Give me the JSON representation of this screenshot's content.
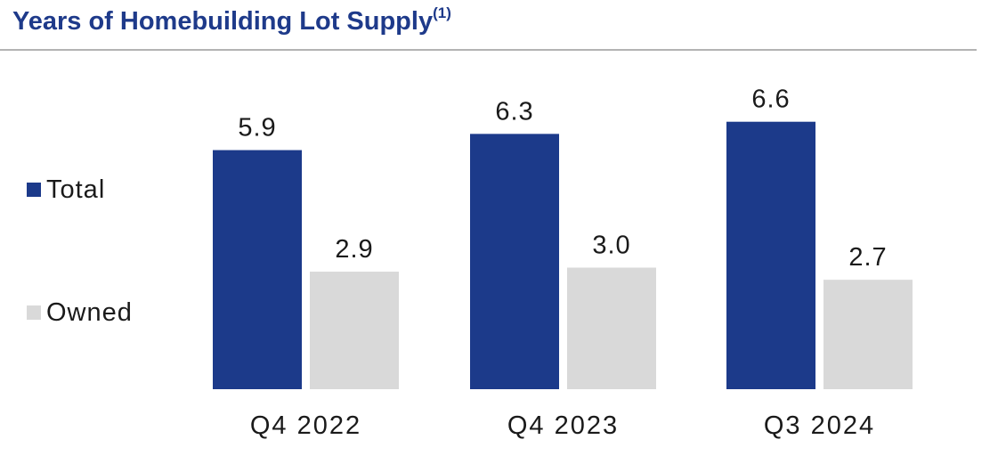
{
  "title": "Years of Homebuilding Lot Supply",
  "title_footnote": "(1)",
  "colors": {
    "title": "#1e3a8a",
    "total": "#1c3a8a",
    "owned": "#d9d9d9",
    "text": "#1a1a1a"
  },
  "legend": [
    {
      "label": "Total"
    },
    {
      "label": "Owned"
    }
  ],
  "chart_data": {
    "type": "bar",
    "categories": [
      "Q4 2022",
      "Q4 2023",
      "Q3 2024"
    ],
    "series": [
      {
        "name": "Total",
        "values": [
          5.9,
          6.3,
          6.6
        ]
      },
      {
        "name": "Owned",
        "values": [
          2.9,
          3.0,
          2.7
        ]
      }
    ],
    "data_labels": [
      [
        "5.9",
        "6.3",
        "6.6"
      ],
      [
        "2.9",
        "3.0",
        "2.7"
      ]
    ],
    "legend_position": "left",
    "grid": false,
    "ylim": [
      0,
      7
    ]
  }
}
